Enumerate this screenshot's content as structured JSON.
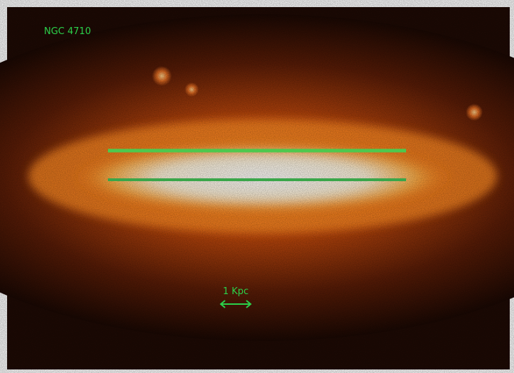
{
  "labels": {
    "title": "NGC 4710",
    "scale": "1 Kpc"
  }
}
